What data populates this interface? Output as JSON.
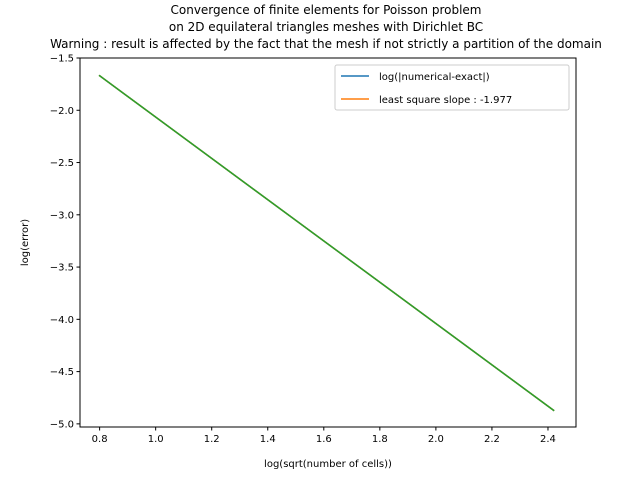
{
  "chart_data": {
    "type": "line",
    "title_lines": [
      "Convergence of finite elements for Poisson problem",
      "on 2D equilateral triangles meshes with Dirichlet BC",
      "Warning : result is affected by the fact that the mesh if not strictly a partition of the domain"
    ],
    "xlabel": "log(sqrt(number of cells))",
    "ylabel": "log(error)",
    "xlim": [
      0.73,
      2.5
    ],
    "ylim": [
      -5.03,
      -1.5
    ],
    "xticks": [
      0.8,
      1.0,
      1.2,
      1.4,
      1.6,
      1.8,
      2.0,
      2.2,
      2.4
    ],
    "xtick_labels": [
      "0.8",
      "1.0",
      "1.2",
      "1.4",
      "1.6",
      "1.8",
      "2.0",
      "2.2",
      "2.4"
    ],
    "yticks": [
      -5.0,
      -4.5,
      -4.0,
      -3.5,
      -3.0,
      -2.5,
      -2.0,
      -1.5
    ],
    "ytick_labels": [
      "−5.0",
      "−4.5",
      "−4.0",
      "−3.5",
      "−3.0",
      "−2.5",
      "−2.0",
      "−1.5"
    ],
    "grid": false,
    "legend_position": "top-right",
    "series": [
      {
        "name": "log(|numerical-exact|)",
        "color": "#1f77b4",
        "x": [
          0.8,
          2.42
        ],
        "y": [
          -1.67,
          -4.87
        ]
      },
      {
        "name": "least square slope : -1.977",
        "color": "#ff7f0e",
        "x": [
          0.8,
          2.42
        ],
        "y": [
          -1.67,
          -4.87
        ]
      },
      {
        "name": "",
        "color": "#2ca02c",
        "x": [
          0.8,
          2.42
        ],
        "y": [
          -1.67,
          -4.87
        ]
      }
    ],
    "legend_series": [
      0,
      1
    ]
  }
}
